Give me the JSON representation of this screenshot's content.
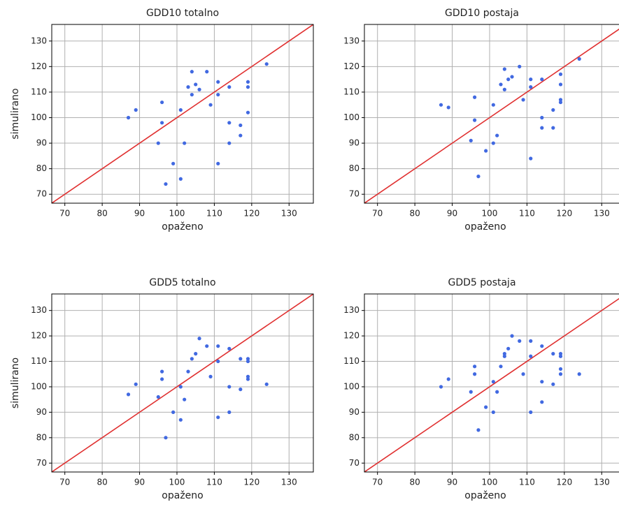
{
  "chart_data": [
    {
      "type": "scatter",
      "title": "GDD10 totalno",
      "xlabel": "opaženo",
      "ylabel": "simulirano",
      "xlim": [
        66.5,
        136.5
      ],
      "ylim": [
        66.5,
        136.5
      ],
      "xticks": [
        70,
        80,
        90,
        100,
        110,
        120,
        130
      ],
      "yticks": [
        70,
        80,
        90,
        100,
        110,
        120,
        130
      ],
      "grid": true,
      "reference_line": {
        "x": [
          66.5,
          136.5
        ],
        "y": [
          66.5,
          136.5
        ],
        "color": "#e03030"
      },
      "series": [
        {
          "color": "#4169e1",
          "x": [
            87,
            89,
            96,
            96,
            95,
            99,
            97,
            101,
            101,
            102,
            103,
            104,
            104,
            105,
            106,
            108,
            109,
            111,
            111,
            111,
            114,
            114,
            114,
            117,
            117,
            119,
            119,
            119,
            124
          ],
          "values": [
            100,
            103,
            106,
            98,
            90,
            82,
            74,
            103,
            76,
            90,
            112,
            118,
            109,
            113,
            111,
            118,
            105,
            114,
            109,
            82,
            112,
            98,
            90,
            97,
            93,
            114,
            112,
            102,
            121
          ]
        }
      ]
    },
    {
      "type": "scatter",
      "title": "GDD10 postaja",
      "xlabel": "opaženo",
      "xlim": [
        66.5,
        136.5
      ],
      "ylim": [
        66.5,
        136.5
      ],
      "xticks": [
        70,
        80,
        90,
        100,
        110,
        120,
        130
      ],
      "yticks": [
        70,
        80,
        90,
        100,
        110,
        120,
        130
      ],
      "grid": true,
      "reference_line": {
        "x": [
          66.5,
          136.5
        ],
        "y": [
          66.5,
          136.5
        ],
        "color": "#e03030"
      },
      "series": [
        {
          "color": "#4169e1",
          "x": [
            87,
            89,
            96,
            96,
            95,
            99,
            97,
            101,
            101,
            102,
            103,
            104,
            104,
            105,
            106,
            108,
            109,
            111,
            111,
            111,
            114,
            114,
            114,
            117,
            117,
            119,
            119,
            119,
            119,
            124
          ],
          "values": [
            105,
            104,
            108,
            99,
            91,
            87,
            77,
            105,
            90,
            93,
            113,
            119,
            111,
            115,
            116,
            120,
            107,
            115,
            112,
            84,
            115,
            100,
            96,
            103,
            96,
            117,
            113,
            107,
            106,
            123
          ]
        }
      ]
    },
    {
      "type": "scatter",
      "title": "GDD5 totalno",
      "xlabel": "opaženo",
      "ylabel": "simulirano",
      "xlim": [
        66.5,
        136.5
      ],
      "ylim": [
        66.5,
        136.5
      ],
      "xticks": [
        70,
        80,
        90,
        100,
        110,
        120,
        130
      ],
      "yticks": [
        70,
        80,
        90,
        100,
        110,
        120,
        130
      ],
      "grid": true,
      "reference_line": {
        "x": [
          66.5,
          136.5
        ],
        "y": [
          66.5,
          136.5
        ],
        "color": "#e03030"
      },
      "series": [
        {
          "color": "#4169e1",
          "x": [
            87,
            89,
            96,
            96,
            95,
            99,
            97,
            101,
            101,
            102,
            103,
            104,
            105,
            106,
            108,
            109,
            111,
            111,
            111,
            114,
            114,
            114,
            117,
            117,
            119,
            119,
            119,
            119,
            124
          ],
          "values": [
            97,
            101,
            106,
            103,
            96,
            90,
            80,
            100,
            87,
            95,
            106,
            111,
            113,
            119,
            116,
            104,
            116,
            110,
            88,
            115,
            100,
            90,
            111,
            99,
            111,
            110,
            104,
            103,
            101
          ]
        }
      ]
    },
    {
      "type": "scatter",
      "title": "GDD5 postaja",
      "xlabel": "opaženo",
      "xlim": [
        66.5,
        136.5
      ],
      "ylim": [
        66.5,
        136.5
      ],
      "xticks": [
        70,
        80,
        90,
        100,
        110,
        120,
        130
      ],
      "yticks": [
        70,
        80,
        90,
        100,
        110,
        120,
        130
      ],
      "grid": true,
      "reference_line": {
        "x": [
          66.5,
          136.5
        ],
        "y": [
          66.5,
          136.5
        ],
        "color": "#e03030"
      },
      "series": [
        {
          "color": "#4169e1",
          "x": [
            87,
            89,
            96,
            96,
            95,
            99,
            97,
            101,
            101,
            102,
            103,
            104,
            104,
            105,
            106,
            108,
            109,
            111,
            111,
            111,
            114,
            114,
            114,
            117,
            117,
            119,
            119,
            119,
            119,
            124
          ],
          "values": [
            100,
            103,
            108,
            105,
            98,
            92,
            83,
            102,
            90,
            98,
            108,
            113,
            112,
            115,
            120,
            118,
            105,
            118,
            112,
            90,
            116,
            102,
            94,
            113,
            101,
            113,
            112,
            107,
            105,
            105
          ]
        }
      ]
    }
  ]
}
